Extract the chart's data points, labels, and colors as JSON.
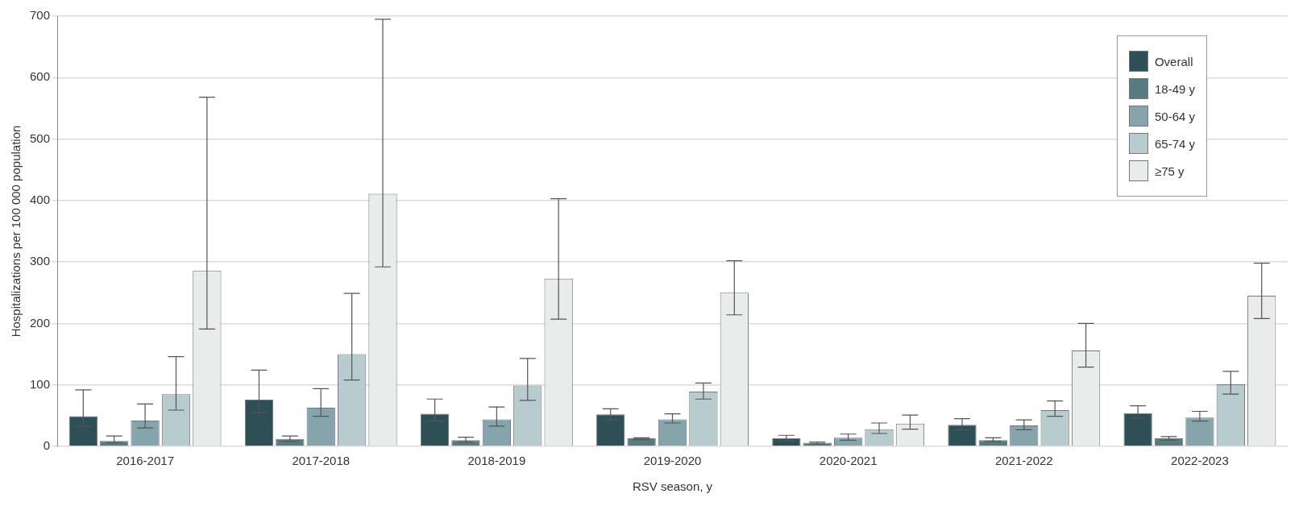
{
  "chart_data": {
    "type": "bar",
    "xlabel": "RSV season, y",
    "ylabel": "Hospitalizations per 100 000 population",
    "categories": [
      "2016-2017",
      "2017-2018",
      "2018-2019",
      "2019-2020",
      "2020-2021",
      "2021-2022",
      "2022-2023"
    ],
    "ylim": [
      0,
      700
    ],
    "yticks": [
      0,
      100,
      200,
      300,
      400,
      500,
      600,
      700
    ],
    "grid": "y",
    "legend": "top right",
    "series": [
      {
        "name": "Overall",
        "color": "#2f4f57",
        "values": [
          49,
          76,
          53,
          52,
          13,
          35,
          54
        ],
        "errors": [
          [
            33,
            92
          ],
          [
            55,
            124
          ],
          [
            41,
            77
          ],
          [
            43,
            61
          ],
          [
            9,
            18
          ],
          [
            27,
            45
          ],
          [
            46,
            66
          ]
        ]
      },
      {
        "name": "18-49 y",
        "color": "#5a7a82",
        "values": [
          9,
          12,
          10,
          13,
          6,
          10,
          13
        ],
        "errors": [
          [
            6,
            17
          ],
          [
            8,
            17
          ],
          [
            7,
            15
          ],
          [
            11,
            14
          ],
          [
            4,
            7
          ],
          [
            8,
            14
          ],
          [
            10,
            16
          ]
        ]
      },
      {
        "name": "50-64 y",
        "color": "#86a4ab",
        "values": [
          42,
          63,
          44,
          44,
          14,
          34,
          47
        ],
        "errors": [
          [
            30,
            69
          ],
          [
            49,
            94
          ],
          [
            33,
            64
          ],
          [
            38,
            53
          ],
          [
            10,
            20
          ],
          [
            27,
            43
          ],
          [
            41,
            57
          ]
        ]
      },
      {
        "name": "65-74 y",
        "color": "#b8cbcf",
        "values": [
          85,
          150,
          99,
          89,
          28,
          59,
          101
        ],
        "errors": [
          [
            59,
            146
          ],
          [
            108,
            249
          ],
          [
            75,
            143
          ],
          [
            77,
            103
          ],
          [
            21,
            38
          ],
          [
            49,
            74
          ],
          [
            85,
            122
          ]
        ]
      },
      {
        "name": "≥75 y",
        "color": "#e8ecea",
        "values": [
          286,
          411,
          273,
          250,
          37,
          156,
          245
        ],
        "errors": [
          [
            191,
            568
          ],
          [
            292,
            695
          ],
          [
            207,
            403
          ],
          [
            214,
            302
          ],
          [
            28,
            51
          ],
          [
            129,
            200
          ],
          [
            208,
            298
          ]
        ]
      }
    ]
  }
}
